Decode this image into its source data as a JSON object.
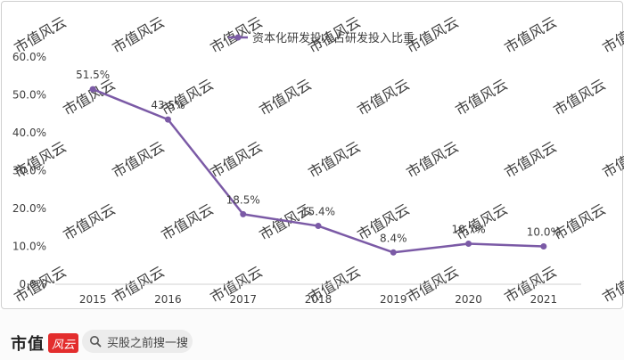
{
  "chart_data": {
    "type": "line",
    "title": "",
    "xlabel": "",
    "ylabel": "",
    "categories": [
      "2015",
      "2016",
      "2017",
      "2018",
      "2019",
      "2020",
      "2021"
    ],
    "series": [
      {
        "name": "资本化研发投入占研发投入比重",
        "values": [
          51.5,
          43.5,
          18.5,
          15.4,
          8.4,
          10.7,
          10.0
        ],
        "labels": [
          "51.5%",
          "43.5%",
          "18.5%",
          "15.4%",
          "8.4%",
          "10.7%",
          "10.0%"
        ],
        "color": "#7b5aa6"
      }
    ],
    "ylim": [
      0,
      60
    ],
    "yticks": [
      0,
      10,
      20,
      30,
      40,
      50,
      60
    ],
    "ytick_labels": [
      "0.0%",
      "10.0%",
      "20.0%",
      "30.0%",
      "40.0%",
      "50.0%",
      "60.0%"
    ],
    "legend_position": "top-center",
    "grid": false
  },
  "watermark": "市值风云",
  "footer": {
    "brand": "市值",
    "logo": "风云",
    "search_label": "买股之前搜一搜"
  }
}
